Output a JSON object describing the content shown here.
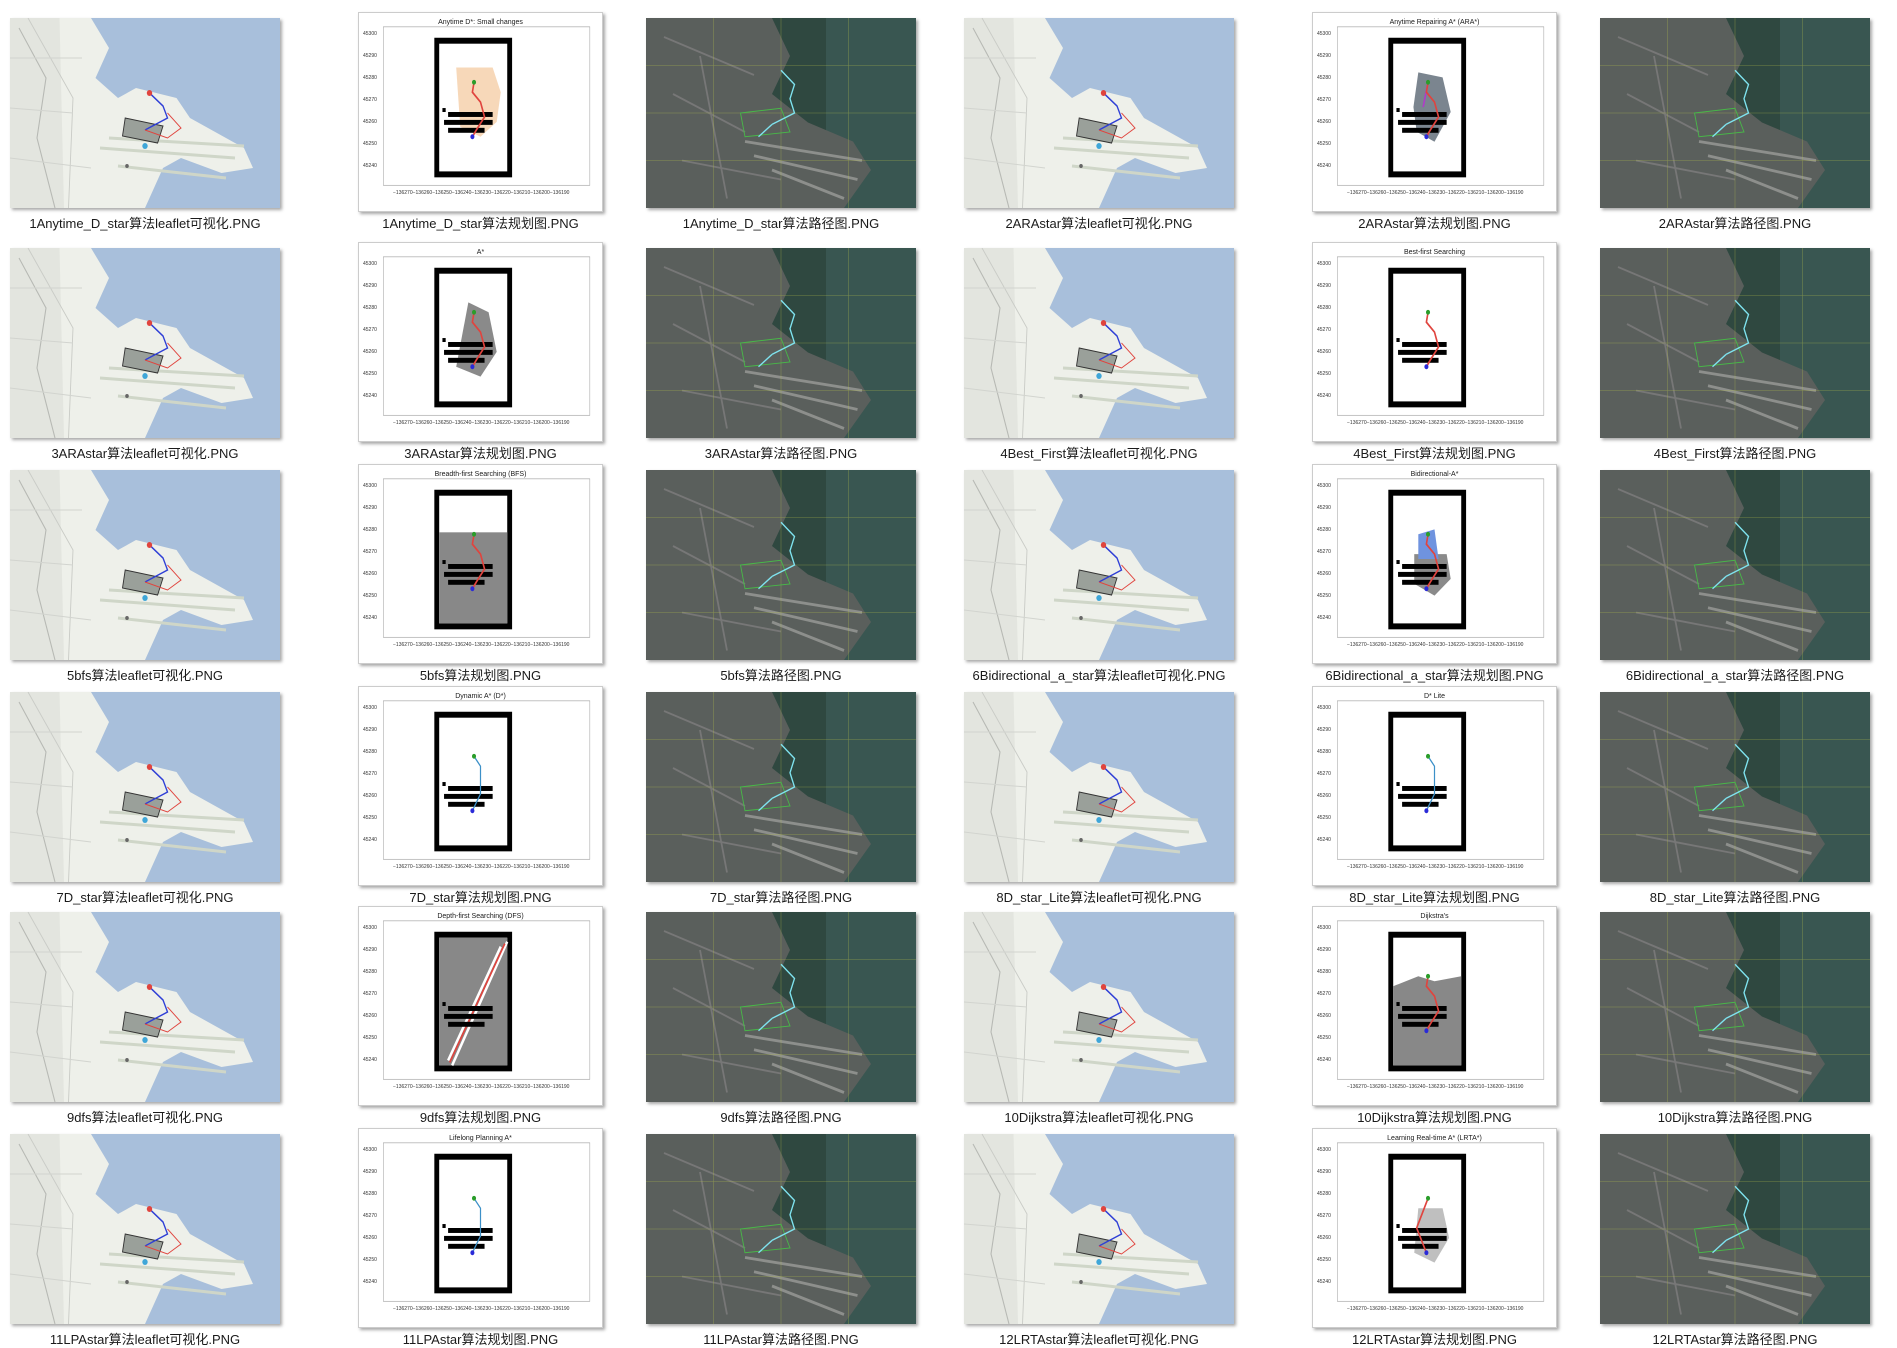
{
  "files": [
    {
      "name": "1Anytime_D_star算法leaflet可视化.PNG",
      "kind": "leaflet"
    },
    {
      "name": "1Anytime_D_star算法规划图.PNG",
      "kind": "plot",
      "plot_title": "Anytime D*: Small changes"
    },
    {
      "name": "1Anytime_D_star算法路径图.PNG",
      "kind": "sat"
    },
    {
      "name": "2ARAstar算法leaflet可视化.PNG",
      "kind": "leaflet"
    },
    {
      "name": "2ARAstar算法规划图.PNG",
      "kind": "plot",
      "plot_title": "Anytime Repairing A* (ARA*)"
    },
    {
      "name": "2ARAstar算法路径图.PNG",
      "kind": "sat"
    },
    {
      "name": "3ARAstar算法leaflet可视化.PNG",
      "kind": "leaflet"
    },
    {
      "name": "3ARAstar算法规划图.PNG",
      "kind": "plot",
      "plot_title": "A*"
    },
    {
      "name": "3ARAstar算法路径图.PNG",
      "kind": "sat"
    },
    {
      "name": "4Best_First算法leaflet可视化.PNG",
      "kind": "leaflet"
    },
    {
      "name": "4Best_First算法规划图.PNG",
      "kind": "plot",
      "plot_title": "Best-first Searching"
    },
    {
      "name": "4Best_First算法路径图.PNG",
      "kind": "sat"
    },
    {
      "name": "5bfs算法leaflet可视化.PNG",
      "kind": "leaflet"
    },
    {
      "name": "5bfs算法规划图.PNG",
      "kind": "plot",
      "plot_title": "Breadth-first Searching (BFS)"
    },
    {
      "name": "5bfs算法路径图.PNG",
      "kind": "sat"
    },
    {
      "name": "6Bidirectional_a_star算法leaflet可视化.PNG",
      "kind": "leaflet"
    },
    {
      "name": "6Bidirectional_a_star算法规划图.PNG",
      "kind": "plot",
      "plot_title": "Bidirectional-A*"
    },
    {
      "name": "6Bidirectional_a_star算法路径图.PNG",
      "kind": "sat"
    },
    {
      "name": "7D_star算法leaflet可视化.PNG",
      "kind": "leaflet"
    },
    {
      "name": "7D_star算法规划图.PNG",
      "kind": "plot",
      "plot_title": "Dynamic A* (D*)"
    },
    {
      "name": "7D_star算法路径图.PNG",
      "kind": "sat"
    },
    {
      "name": "8D_star_Lite算法leaflet可视化.PNG",
      "kind": "leaflet"
    },
    {
      "name": "8D_star_Lite算法规划图.PNG",
      "kind": "plot",
      "plot_title": "D* Lite"
    },
    {
      "name": "8D_star_Lite算法路径图.PNG",
      "kind": "sat"
    },
    {
      "name": "9dfs算法leaflet可视化.PNG",
      "kind": "leaflet"
    },
    {
      "name": "9dfs算法规划图.PNG",
      "kind": "plot",
      "plot_title": "Depth-first Searching (DFS)"
    },
    {
      "name": "9dfs算法路径图.PNG",
      "kind": "sat"
    },
    {
      "name": "10Dijkstra算法leaflet可视化.PNG",
      "kind": "leaflet"
    },
    {
      "name": "10Dijkstra算法规划图.PNG",
      "kind": "plot",
      "plot_title": "Dijkstra's"
    },
    {
      "name": "10Dijkstra算法路径图.PNG",
      "kind": "sat"
    },
    {
      "name": "11LPAstar算法leaflet可视化.PNG",
      "kind": "leaflet"
    },
    {
      "name": "11LPAstar算法规划图.PNG",
      "kind": "plot",
      "plot_title": "Lifelong Planning A*"
    },
    {
      "name": "11LPAstar算法路径图.PNG",
      "kind": "sat"
    },
    {
      "name": "12LRTAstar算法leaflet可视化.PNG",
      "kind": "leaflet"
    },
    {
      "name": "12LRTAstar算法规划图.PNG",
      "kind": "plot",
      "plot_title": "Learning Real-time A* (LRTA*)"
    },
    {
      "name": "12LRTAstar算法路径图.PNG",
      "kind": "sat"
    }
  ],
  "plot_axis": {
    "yticks": [
      "45300",
      "45290",
      "45280",
      "45270",
      "45260",
      "45250",
      "45240"
    ],
    "xticks": "−136270−136260−136250−136240−136230−136220−136210−136200−136190"
  },
  "colors": {
    "water": "#a8bfdb",
    "land": "#eef0ea",
    "sat_dark": "#3f4a44",
    "path_blue": "#2f3fd6",
    "path_red": "#e0443e",
    "path_cyan": "#7fe3ef",
    "plot_grey": "#888888"
  }
}
